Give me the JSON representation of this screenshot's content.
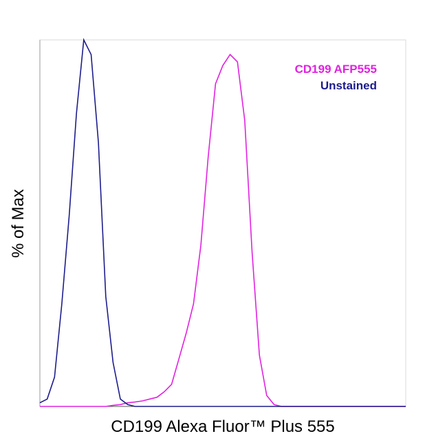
{
  "chart_data": {
    "type": "line",
    "xlabel": "CD199 Alexa Fluor™ Plus 555",
    "ylabel": "% of Max",
    "xlim": [
      0,
      100
    ],
    "ylim": [
      0,
      100
    ],
    "legend": "top-right",
    "x": [
      0,
      2,
      4,
      6,
      8,
      10,
      12,
      14,
      16,
      18,
      20,
      22,
      24,
      26,
      28,
      30,
      32,
      34,
      36,
      38,
      40,
      42,
      44,
      46,
      48,
      50,
      52,
      54,
      56,
      58,
      60,
      62,
      64,
      66,
      68,
      70,
      72,
      74,
      76,
      78,
      80,
      82,
      84,
      86,
      88,
      90,
      92,
      94,
      96,
      98,
      100
    ],
    "series": [
      {
        "name": "CD199 AFP555",
        "color": "#e022e0",
        "values": [
          0,
          0,
          0,
          0,
          0,
          0,
          0,
          0,
          0,
          0,
          0.3,
          0.5,
          1,
          1.2,
          1.5,
          2,
          2.5,
          4,
          6,
          13,
          20,
          28,
          44,
          68,
          88,
          93,
          96,
          94,
          78,
          42,
          14,
          3,
          0.5,
          0,
          0,
          0,
          0,
          0,
          0,
          0,
          0,
          0,
          0,
          0,
          0,
          0,
          0,
          0,
          0,
          0,
          0
        ]
      },
      {
        "name": "Unstained",
        "color": "#1c1c8c",
        "values": [
          1,
          2,
          8,
          28,
          52,
          80,
          100,
          96,
          72,
          30,
          12,
          2,
          0.5,
          0,
          0,
          0,
          0,
          0,
          0,
          0,
          0,
          0,
          0,
          0,
          0,
          0,
          0,
          0,
          0,
          0,
          0,
          0,
          0,
          0,
          0,
          0,
          0,
          0,
          0,
          0,
          0,
          0,
          0,
          0,
          0,
          0,
          0,
          0,
          0,
          0,
          0
        ]
      }
    ]
  }
}
